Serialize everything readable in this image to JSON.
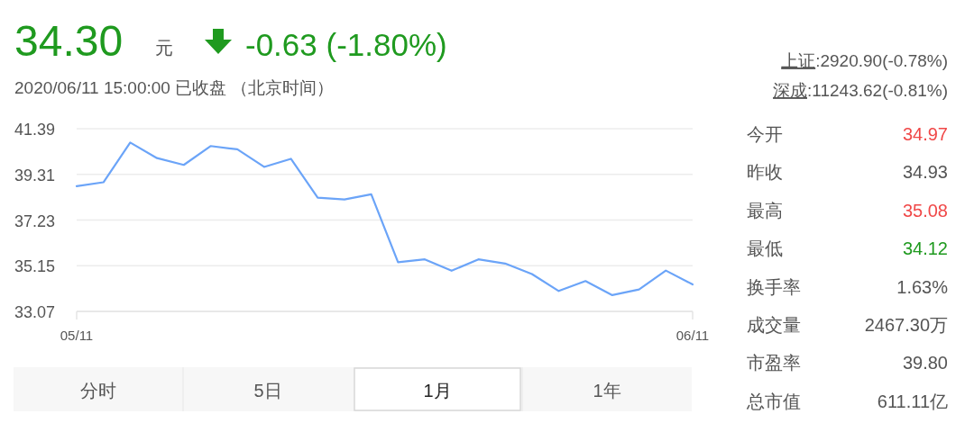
{
  "chart_data": [
    {
      "type": "line",
      "title": "34.30",
      "subtitle": "2020/06/11 15:00:00   已收盘 （北京时间）",
      "annotations": [
        "元",
        "-0.63 (-1.80%)",
        "分时",
        "5日",
        "1月",
        "1年"
      ],
      "categories": [
        "05/11",
        null,
        null,
        null,
        null,
        null,
        null,
        null,
        null,
        null,
        null,
        null,
        null,
        null,
        null,
        null,
        null,
        null,
        null,
        null,
        null,
        null,
        null,
        "06/11"
      ],
      "series": [
        {
          "color": "#6ba4f8",
          "values": [
            38.77,
            38.95,
            40.76,
            40.05,
            39.74,
            40.6,
            40.45,
            39.65,
            40.02,
            38.25,
            38.17,
            38.4,
            35.31,
            35.44,
            34.92,
            35.44,
            35.25,
            34.77,
            34.0,
            34.45,
            33.81,
            34.07,
            34.93,
            34.3
          ]
        }
      ],
      "ylim": [
        33.07,
        41.39
      ],
      "yticks": [
        33.07,
        35.15,
        37.23,
        39.31,
        41.39
      ],
      "grid": "y",
      "line_style": "solid",
      "marker": "none"
    },
    {
      "type": "other",
      "annotations": [
        "上证:2920.90(-0.78%)",
        "深成:11243.62(-0.81%)",
        "今开",
        "34.97",
        "昨收",
        "34.93",
        "最高",
        "35.08",
        "最低",
        "34.12",
        "换手率",
        "1.63%",
        "成交量",
        "2467.30万",
        "市盈率",
        "39.80",
        "总市值",
        "611.11亿"
      ],
      "colors": [
        "#555555",
        "#555555",
        "#555555",
        "#f04848",
        "#555555",
        "#555555",
        "#555555",
        "#f04848",
        "#555555",
        "#1f9a1f",
        "#555555",
        "#555555",
        "#555555",
        "#555555",
        "#555555",
        "#555555",
        "#555555",
        "#555555"
      ]
    }
  ]
}
